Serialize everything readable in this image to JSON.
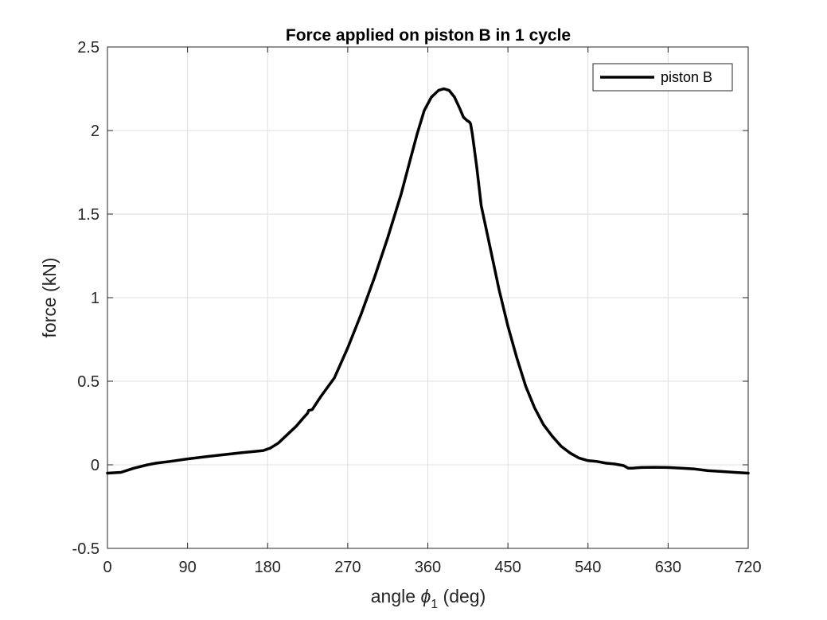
{
  "chart_data": {
    "type": "line",
    "title": "Force applied on  piston B in 1 cycle",
    "xlabel": {
      "prefix": "angle ",
      "symbol": "ϕ",
      "subscript": "1",
      "suffix": " (deg)"
    },
    "ylabel": "force (kN)",
    "xlim": [
      0,
      720
    ],
    "ylim": [
      -0.5,
      2.5
    ],
    "xticks": [
      0,
      90,
      180,
      270,
      360,
      450,
      540,
      630,
      720
    ],
    "yticks": [
      -0.5,
      0,
      0.5,
      1,
      1.5,
      2,
      2.5
    ],
    "xtick_labels": [
      "0",
      "90",
      "180",
      "270",
      "360",
      "450",
      "540",
      "630",
      "720"
    ],
    "ytick_labels": [
      "-0.5",
      "0",
      "0.5",
      "1",
      "1.5",
      "2",
      "2.5"
    ],
    "grid": true,
    "legend_position": "top-right",
    "series": [
      {
        "name": "piston B",
        "color": "#000000",
        "x": [
          0,
          15,
          30,
          45,
          55,
          70,
          90,
          110,
          130,
          150,
          165,
          175,
          183,
          192,
          202,
          212,
          220,
          225,
          226,
          230,
          240,
          255,
          270,
          285,
          300,
          315,
          330,
          340,
          348,
          356,
          364,
          372,
          378,
          384,
          390,
          396,
          400,
          404,
          407,
          408,
          410,
          415,
          420,
          430,
          440,
          450,
          460,
          470,
          480,
          490,
          500,
          510,
          520,
          530,
          540,
          550,
          560,
          570,
          580,
          585,
          590,
          595,
          600,
          615,
          630,
          645,
          660,
          675,
          690,
          705,
          720
        ],
        "y": [
          -0.05,
          -0.045,
          -0.02,
          0.0,
          0.01,
          0.02,
          0.035,
          0.048,
          0.06,
          0.072,
          0.08,
          0.085,
          0.1,
          0.13,
          0.18,
          0.23,
          0.28,
          0.31,
          0.325,
          0.33,
          0.41,
          0.52,
          0.7,
          0.9,
          1.12,
          1.36,
          1.62,
          1.82,
          1.98,
          2.12,
          2.2,
          2.24,
          2.25,
          2.24,
          2.2,
          2.13,
          2.08,
          2.06,
          2.05,
          2.04,
          1.98,
          1.78,
          1.55,
          1.3,
          1.05,
          0.83,
          0.64,
          0.47,
          0.34,
          0.24,
          0.17,
          0.11,
          0.07,
          0.04,
          0.025,
          0.02,
          0.01,
          0.005,
          -0.005,
          -0.02,
          -0.02,
          -0.018,
          -0.016,
          -0.015,
          -0.016,
          -0.02,
          -0.025,
          -0.035,
          -0.04,
          -0.045,
          -0.05
        ]
      }
    ]
  }
}
